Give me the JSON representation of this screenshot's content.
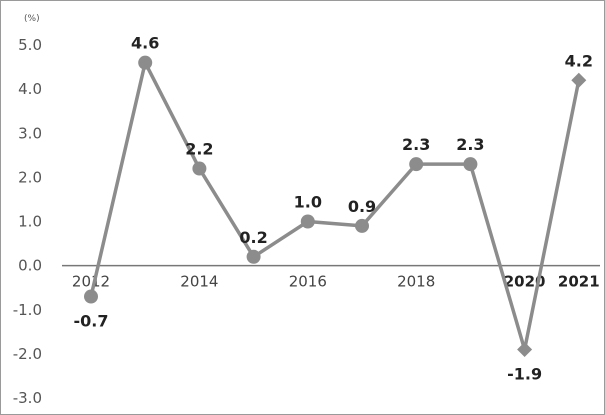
{
  "chart_data": {
    "type": "line",
    "unit_label": "(%)",
    "x": [
      2012,
      2013,
      2014,
      2015,
      2016,
      2017,
      2018,
      2019,
      2020,
      2021
    ],
    "x_tick_labels": [
      "2012",
      "2014",
      "2016",
      "2018",
      "2020",
      "2021"
    ],
    "x_tick_values": [
      2012,
      2014,
      2016,
      2018,
      2020,
      2021
    ],
    "x_tick_bold": [
      false,
      false,
      false,
      false,
      true,
      true
    ],
    "y_ticks": [
      5.0,
      4.0,
      3.0,
      2.0,
      1.0,
      0.0,
      -1.0,
      -2.0,
      -3.0
    ],
    "y_tick_labels": [
      "5.0",
      "4.0",
      "3.0",
      "2.0",
      "1.0",
      "0.0",
      "-1.0",
      "-2.0",
      "-3.0"
    ],
    "ylim": [
      -3.0,
      5.0
    ],
    "series": [
      {
        "values": [
          -0.7,
          4.6,
          2.2,
          0.2,
          1.0,
          0.9,
          2.3,
          2.3,
          -1.9,
          4.2
        ],
        "labels": [
          "-0.7",
          "4.6",
          "2.2",
          "0.2",
          "1.0",
          "0.9",
          "2.3",
          "2.3",
          "-1.9",
          "4.2"
        ],
        "markers": [
          "circle",
          "circle",
          "circle",
          "circle",
          "circle",
          "circle",
          "circle",
          "circle",
          "diamond",
          "diamond"
        ],
        "color": "#8c8c8c"
      }
    ],
    "grid": false,
    "legend": "none"
  }
}
